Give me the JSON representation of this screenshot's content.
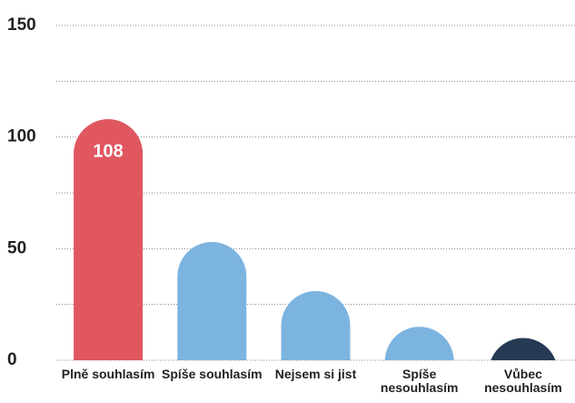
{
  "chart_data": {
    "type": "bar",
    "categories": [
      "Plně souhlasím",
      "Spíše souhlasím",
      "Nejsem si jist",
      "Spíše nesouhlasím",
      "Vůbec nesouhlasím"
    ],
    "values": [
      108,
      53,
      31,
      15,
      10
    ],
    "colors": [
      "#e05760",
      "#7cb4e0",
      "#7cb4e0",
      "#7cb4e0",
      "#263a54"
    ],
    "show_value": [
      true,
      false,
      false,
      false,
      false
    ],
    "ylim": [
      0,
      150
    ],
    "yticks": [
      0,
      50,
      100,
      150
    ],
    "minor_yticks": [
      25,
      75,
      125
    ],
    "grid": true
  }
}
